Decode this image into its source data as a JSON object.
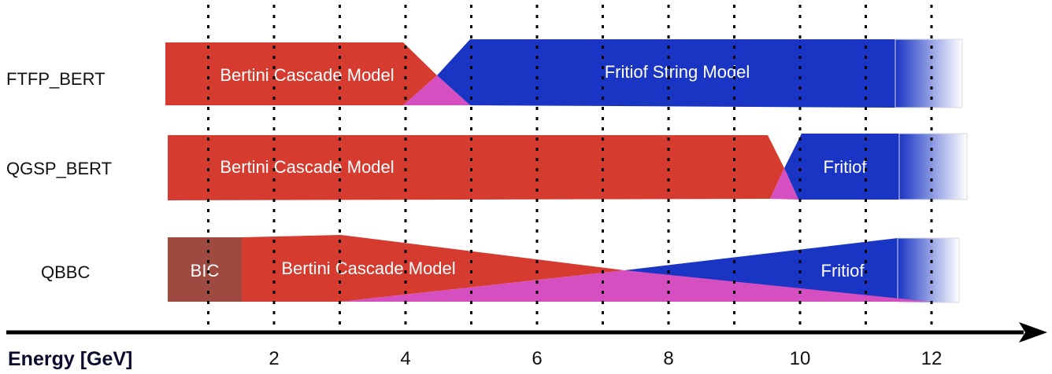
{
  "axis": {
    "title": "Energy [GeV]",
    "ticks": [
      2,
      4,
      6,
      8,
      10,
      12
    ],
    "gridlines": [
      1,
      2,
      3,
      4,
      5,
      6,
      7,
      8,
      9,
      10,
      11,
      12
    ]
  },
  "rows": [
    {
      "name": "FTFP_BERT",
      "bertini_label": "Bertini Cascade Model",
      "fritiof_label": "Fritiof String Model",
      "transition_gev": [
        4,
        5
      ]
    },
    {
      "name": "QGSP_BERT",
      "bertini_label": "Bertini Cascade Model",
      "fritiof_label": "Fritiof",
      "transition_gev": [
        9.5,
        10
      ]
    },
    {
      "name": "QBBC",
      "bic_label": "BIC",
      "bertini_label": "Bertini Cascade Model",
      "fritiof_label": "Fritiof",
      "bic_range_gev": [
        0,
        1.5
      ],
      "transition_gev": [
        3,
        12
      ]
    }
  ],
  "colors": {
    "bertini": "#d63b2f",
    "fritiof": "#1a35c4",
    "overlap": "#d64fc0",
    "bic": "#9e4a40",
    "axis": "#000000",
    "gridline": "#000000"
  }
}
